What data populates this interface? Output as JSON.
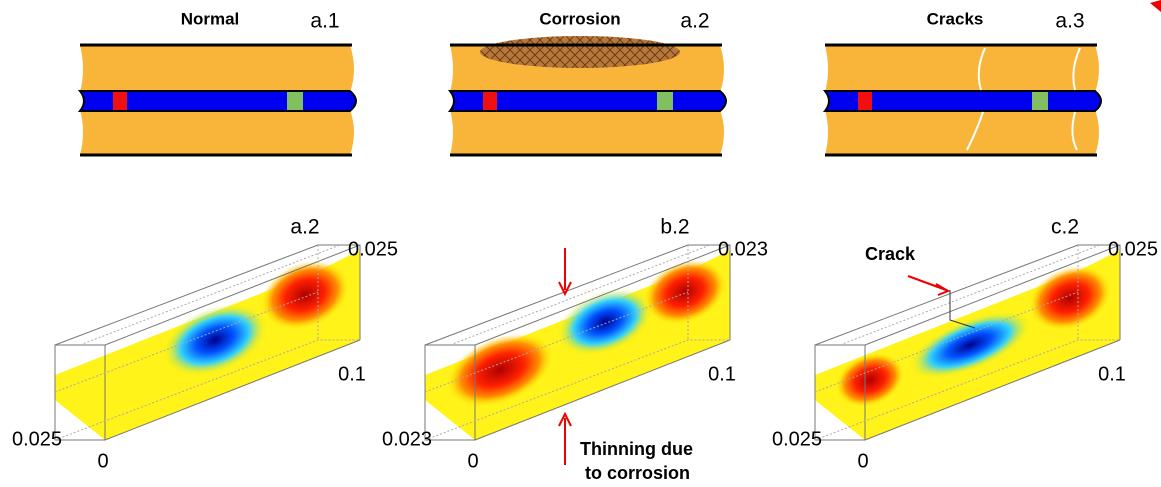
{
  "panels_top": [
    {
      "title": "Normal",
      "label": "a.1"
    },
    {
      "title": "Corrosion",
      "label": "a.2"
    },
    {
      "title": "Cracks",
      "label": "a.3"
    }
  ],
  "panels_bottom": [
    {
      "label": "a.2",
      "tick_top_right": "0.025",
      "tick_right": "0.1",
      "tick_left": "0.025",
      "tick_origin": "0"
    },
    {
      "label": "b.2",
      "tick_top_right": "0.023",
      "tick_right": "0.1",
      "tick_left": "0.023",
      "tick_origin": "0"
    },
    {
      "label": "c.2",
      "tick_top_right": "0.025",
      "tick_right": "0.1",
      "tick_left": "0.025",
      "tick_origin": "0"
    }
  ],
  "annotations": {
    "thinning": [
      "Thinning due",
      "to corrosion"
    ],
    "crack": "Crack"
  }
}
